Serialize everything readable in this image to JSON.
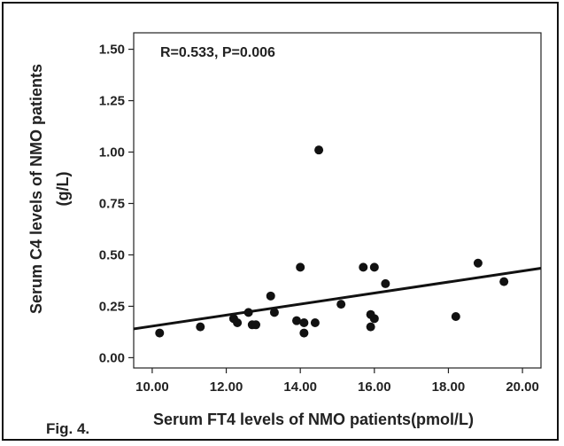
{
  "figure_label": "Fig. 4.",
  "chart_data": {
    "type": "scatter",
    "annotation": "R=0.533, P=0.006",
    "xlabel": "Serum FT4 levels of NMO patients(pmol/L)",
    "ylabel_lines": [
      "Serum C4 levels of NMO patients",
      "(g/L)"
    ],
    "xlim": [
      9.5,
      20.5
    ],
    "ylim": [
      -0.05,
      1.58
    ],
    "xticks": [
      10,
      12,
      14,
      16,
      18,
      20
    ],
    "xtick_labels": [
      "10.00",
      "12.00",
      "14.00",
      "16.00",
      "18.00",
      "20.00"
    ],
    "yticks": [
      0,
      0.25,
      0.5,
      0.75,
      1,
      1.25,
      1.5
    ],
    "ytick_labels": [
      "0.00",
      "0.25",
      "0.50",
      "0.75",
      "1.00",
      "1.25",
      "1.50"
    ],
    "points": [
      {
        "x": 10.2,
        "y": 0.12
      },
      {
        "x": 11.3,
        "y": 0.15
      },
      {
        "x": 12.2,
        "y": 0.19
      },
      {
        "x": 12.3,
        "y": 0.17
      },
      {
        "x": 12.6,
        "y": 0.22
      },
      {
        "x": 12.7,
        "y": 0.16
      },
      {
        "x": 12.8,
        "y": 0.16
      },
      {
        "x": 13.2,
        "y": 0.3
      },
      {
        "x": 13.3,
        "y": 0.22
      },
      {
        "x": 13.9,
        "y": 0.18
      },
      {
        "x": 14.0,
        "y": 0.44
      },
      {
        "x": 14.1,
        "y": 0.17
      },
      {
        "x": 14.1,
        "y": 0.12
      },
      {
        "x": 14.4,
        "y": 0.17
      },
      {
        "x": 14.5,
        "y": 1.01
      },
      {
        "x": 15.1,
        "y": 0.26
      },
      {
        "x": 15.7,
        "y": 0.44
      },
      {
        "x": 15.9,
        "y": 0.21
      },
      {
        "x": 15.9,
        "y": 0.15
      },
      {
        "x": 16.0,
        "y": 0.44
      },
      {
        "x": 16.0,
        "y": 0.19
      },
      {
        "x": 16.3,
        "y": 0.36
      },
      {
        "x": 18.2,
        "y": 0.2
      },
      {
        "x": 18.8,
        "y": 0.46
      },
      {
        "x": 19.5,
        "y": 0.37
      }
    ],
    "fit_line": {
      "x": [
        9.5,
        20.5
      ],
      "y": [
        0.14,
        0.435
      ]
    },
    "colors": {
      "points": "#111111",
      "line": "#111111",
      "axis": "#222222"
    }
  }
}
